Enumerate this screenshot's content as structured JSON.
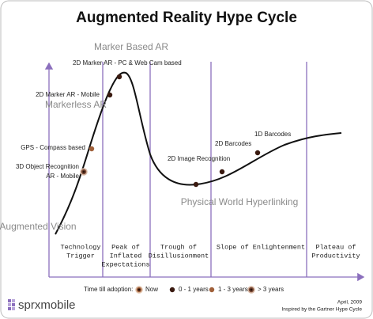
{
  "title": "Augmented Reality Hype Cycle",
  "annotations": [
    "Marker Based AR",
    "Markerless AR",
    "Physical World Hyperlinking",
    "Augmented Vision"
  ],
  "technologies": [
    {
      "lines": [
        "3D Object Recognition",
        "AR - Mobile"
      ]
    },
    {
      "lines": [
        "GPS - Compass based"
      ]
    },
    {
      "lines": [
        "2D Marker AR - Mobile"
      ]
    },
    {
      "lines": [
        "2D Marker AR - PC & Web Cam based"
      ]
    },
    {
      "lines": [
        "2D Image Recognition"
      ]
    },
    {
      "lines": [
        "2D Barcodes"
      ]
    },
    {
      "lines": [
        "1D Barcodes"
      ]
    }
  ],
  "phases": [
    {
      "lines": [
        "Technology",
        "Trigger"
      ]
    },
    {
      "lines": [
        "Peak of",
        "Inflated",
        "Expectations"
      ]
    },
    {
      "lines": [
        "Trough of",
        "Disillusionment"
      ]
    },
    {
      "lines": [
        "Slope of Enlightenment"
      ]
    },
    {
      "lines": [
        "Plateau of",
        "Productivity"
      ]
    }
  ],
  "legend": {
    "title": "Time till adoption:",
    "items": [
      "Now",
      "0 - 1 years",
      "1 - 3 years",
      "> 3 years"
    ]
  },
  "footer": {
    "brand": "sprxmobile",
    "date": "April, 2009",
    "credit": "Inspired by the Gartner Hype Cycle"
  }
}
